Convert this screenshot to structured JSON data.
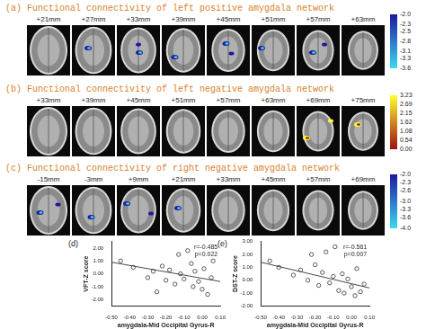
{
  "brain_panels": [
    {
      "title": "(a) Functional connectivity of left positive amygdala network",
      "slices": [
        {
          "label": "+21mm",
          "cluster": false
        },
        {
          "label": "+27mm",
          "cluster": true
        },
        {
          "label": "+33mm",
          "cluster": true
        },
        {
          "label": "+39mm",
          "cluster": true
        },
        {
          "label": "+45mm",
          "cluster": true
        },
        {
          "label": "+51mm",
          "cluster": true
        },
        {
          "label": "+57mm",
          "cluster": true
        },
        {
          "label": "+63mm",
          "cluster": false
        }
      ],
      "colorbar": {
        "ticks": [
          {
            "value": -2.0,
            "label": "-2.0"
          },
          {
            "value": -2.3,
            "label": "-2.3"
          },
          -2.5,
          -2.8,
          -3.1,
          -3.3,
          -3.6
        ],
        "colors": [
          "#1a1aa0",
          "#3fd8f0"
        ]
      }
    },
    {
      "title": "(b) Functional connectivity of left negative amygdala network",
      "slices": [
        {
          "label": "+33mm",
          "cluster": false
        },
        {
          "label": "+39mm",
          "cluster": false
        },
        {
          "label": "+45mm",
          "cluster": false
        },
        {
          "label": "+51mm",
          "cluster": false
        },
        {
          "label": "+57mm",
          "cluster": false
        },
        {
          "label": "+63mm",
          "cluster": false
        },
        {
          "label": "+69mm",
          "cluster": true
        },
        {
          "label": "+75mm",
          "cluster": true
        }
      ],
      "colorbar": {
        "ticks": [
          3.23,
          2.69,
          2.15,
          1.62,
          1.08,
          0.54,
          {
            "value": 0,
            "label": "0.00"
          }
        ],
        "colors": [
          "#ffff30",
          "#a01010"
        ]
      }
    },
    {
      "title": "(c) Functional connectivity of right negative amygdala network",
      "slices": [
        {
          "label": "-15mm",
          "cluster": true
        },
        {
          "label": "-3mm",
          "cluster": true
        },
        {
          "label": "+9mm",
          "cluster": true
        },
        {
          "label": "+21mm",
          "cluster": true
        },
        {
          "label": "+33mm",
          "cluster": false
        },
        {
          "label": "+45mm",
          "cluster": false
        },
        {
          "label": "+57mm",
          "cluster": false
        },
        {
          "label": "+69mm",
          "cluster": false
        }
      ],
      "colorbar": {
        "ticks": [
          {
            "value": -2.0,
            "label": "-2.0"
          },
          -2.3,
          -2.6,
          {
            "value": -3.0,
            "label": "-3.0"
          },
          -3.3,
          -3.6,
          {
            "value": -4.0,
            "label": "-4.0"
          }
        ],
        "colors": [
          "#1a1aa0",
          "#3fd8f0"
        ]
      }
    }
  ],
  "chart_data": [
    {
      "type": "scatter",
      "label": "(d)",
      "x_label": "amygdala-Mid Occipital Gyrus-R",
      "y_label": "VFT-Z score",
      "annotation": [
        "r=-0.485",
        "p=0.022"
      ],
      "color": "#333333",
      "marker": "circle",
      "x": [
        -0.45,
        -0.38,
        -0.3,
        -0.27,
        -0.22,
        -0.2,
        -0.18,
        -0.15,
        -0.13,
        -0.12,
        -0.1,
        -0.08,
        -0.06,
        -0.05,
        -0.04,
        -0.02,
        0.0,
        0.01,
        0.03,
        0.05,
        0.06,
        -0.25
      ],
      "values": [
        1.0,
        0.5,
        -0.3,
        0.2,
        0.6,
        -0.5,
        0.3,
        -0.8,
        1.5,
        0.0,
        -0.4,
        1.8,
        0.8,
        -1.0,
        0.2,
        -0.6,
        -1.2,
        0.4,
        -1.6,
        -0.3,
        1.0,
        -1.4
      ],
      "fit_line": {
        "x": [
          -0.5,
          0.1
        ],
        "y": [
          0.9,
          -0.6
        ]
      },
      "xlim": [
        -0.5,
        0.1
      ],
      "xticks": [
        {
          "value": -0.5,
          "label": "-0.50"
        },
        {
          "value": -0.4,
          "label": "-0.40"
        },
        {
          "value": -0.3,
          "label": "-0.30"
        },
        {
          "value": -0.2,
          "label": "-0.20"
        },
        {
          "value": -0.1,
          "label": "-0.10"
        },
        {
          "value": 0,
          "label": "0.00"
        },
        {
          "value": 0.1,
          "label": "0.10"
        }
      ],
      "ylim": [
        -2.5,
        2.5
      ],
      "yticks": [
        {
          "value": -2,
          "label": "-2.00"
        },
        {
          "value": -1,
          "label": "-1.00"
        },
        {
          "value": 0,
          "label": "0.00"
        },
        {
          "value": 1,
          "label": "1.00"
        },
        {
          "value": 2,
          "label": "2.00"
        }
      ],
      "grid": false
    },
    {
      "type": "scatter",
      "label": "(e)",
      "x_label": "amygdala-Mid Occipital Gyrus-R",
      "y_label": "DST-Z score",
      "annotation": [
        "r=-0.561",
        "p=0.007"
      ],
      "color": "#333333",
      "marker": "circle",
      "x": [
        -0.45,
        -0.4,
        -0.32,
        -0.28,
        -0.24,
        -0.2,
        -0.18,
        -0.16,
        -0.14,
        -0.12,
        -0.1,
        -0.09,
        -0.07,
        -0.05,
        -0.04,
        -0.02,
        0.0,
        0.02,
        0.03,
        0.05,
        0.07,
        -0.22
      ],
      "values": [
        1.5,
        1.0,
        0.4,
        0.8,
        0.0,
        1.2,
        -0.4,
        0.6,
        2.2,
        -0.2,
        0.3,
        2.6,
        -0.8,
        0.5,
        -1.0,
        0.1,
        -0.5,
        -1.2,
        0.9,
        -0.9,
        -0.3,
        2.0
      ],
      "fit_line": {
        "x": [
          -0.5,
          0.1
        ],
        "y": [
          1.4,
          -0.6
        ]
      },
      "xlim": [
        -0.5,
        0.1
      ],
      "xticks": [
        {
          "value": -0.5,
          "label": "-0.50"
        },
        {
          "value": -0.4,
          "label": "-0.40"
        },
        {
          "value": -0.3,
          "label": "-0.30"
        },
        {
          "value": -0.2,
          "label": "-0.20"
        },
        {
          "value": -0.1,
          "label": "-0.10"
        },
        {
          "value": 0,
          "label": "0.00"
        },
        {
          "value": 0.1,
          "label": "0.10"
        }
      ],
      "ylim": [
        -2,
        3
      ],
      "yticks": [
        {
          "value": -2,
          "label": "-2.00"
        },
        {
          "value": -1,
          "label": "-1.00"
        },
        {
          "value": 0,
          "label": "0.00"
        },
        {
          "value": 1,
          "label": "1.00"
        },
        {
          "value": 2,
          "label": "2.00"
        },
        {
          "value": 3,
          "label": "3.00"
        }
      ],
      "grid": false
    }
  ]
}
